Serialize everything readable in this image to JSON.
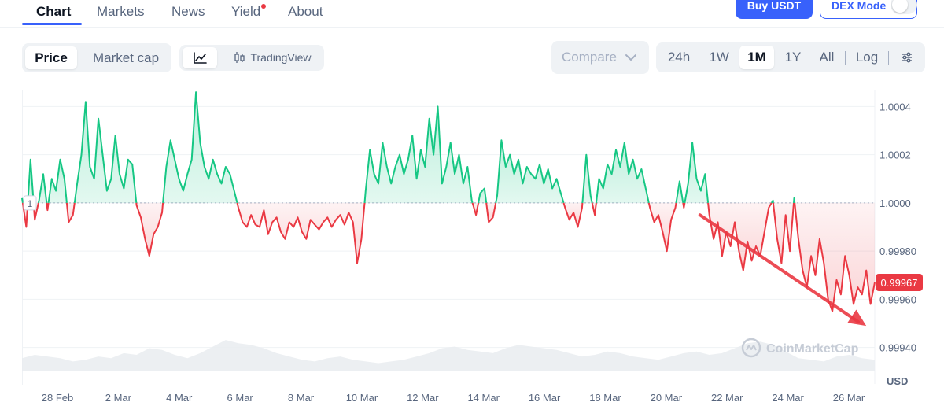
{
  "nav": {
    "tabs": [
      {
        "label": "Chart",
        "active": true
      },
      {
        "label": "Markets"
      },
      {
        "label": "News"
      },
      {
        "label": "Yield",
        "has_dot": true
      },
      {
        "label": "About"
      }
    ],
    "buy_label": "Buy USDT",
    "dex_label": "DEX Mode",
    "dex_enabled": false
  },
  "toolbar": {
    "metric": [
      "Price",
      "Market cap"
    ],
    "metric_selected": "Price",
    "view_line_icon": "line-chart-icon",
    "tradingview_label": "TradingView",
    "compare_label": "Compare",
    "ranges": [
      "24h",
      "1W",
      "1M",
      "1Y",
      "All"
    ],
    "range_selected": "1M",
    "log_label": "Log",
    "settings_icon": "sliders-icon"
  },
  "chart_data": {
    "type": "line",
    "baseline": 1.0,
    "baseline_label": "1",
    "current_price": 0.99967,
    "current_price_label": "0.99967",
    "y_ticks": [
      1.0004,
      1.0002,
      1.0,
      0.9998,
      0.9996,
      0.9994
    ],
    "y_tick_labels": [
      "1.0004",
      "1.0002",
      "1.0000",
      "0.99980",
      "0.99960",
      "0.99940"
    ],
    "ylim": [
      0.99934,
      1.00047
    ],
    "currency_label": "USD",
    "x_tick_labels": [
      "28 Feb",
      "2 Mar",
      "4 Mar",
      "6 Mar",
      "8 Mar",
      "10 Mar",
      "12 Mar",
      "14 Mar",
      "16 Mar",
      "18 Mar",
      "20 Mar",
      "22 Mar",
      "24 Mar",
      "26 Mar"
    ],
    "colors": {
      "up": "#16c784",
      "down": "#ea3943",
      "grid": "#eff2f5"
    },
    "series": [
      {
        "values": [
          1.00002,
          0.9999,
          1.00018,
          0.99993,
          1.00001,
          1.00012,
          0.99997,
          1.0001,
          1.00005,
          1.00018,
          1.0001,
          0.99992,
          0.99995,
          1.00008,
          1.0002,
          1.00042,
          1.00015,
          1.0001,
          1.00035,
          1.0002,
          1.00005,
          1.0001,
          1.00028,
          1.00012,
          1.00006,
          1.00018,
          1.00016,
          0.99999,
          0.99994,
          0.99985,
          0.99978,
          0.99987,
          0.9999,
          0.99996,
          1.00015,
          1.00026,
          1.00018,
          1.0001,
          1.00005,
          1.00012,
          1.00018,
          1.00046,
          1.00025,
          1.00015,
          1.0001,
          1.00018,
          1.00012,
          1.00008,
          1.00015,
          1.00012,
          1.00005,
          0.99998,
          0.99992,
          0.9999,
          0.99995,
          0.99991,
          0.9999,
          0.99997,
          0.99987,
          0.99992,
          0.99994,
          0.99988,
          0.99985,
          0.99992,
          0.9999,
          0.99994,
          0.99988,
          0.99985,
          0.99993,
          0.99991,
          0.99989,
          0.99992,
          0.99994,
          0.9999,
          0.99993,
          0.99995,
          0.99991,
          0.99996,
          0.99992,
          0.99975,
          0.99985,
          1.00005,
          1.00022,
          1.00012,
          1.00008,
          1.00025,
          1.00015,
          1.00008,
          1.00015,
          1.0002,
          1.00012,
          1.00018,
          1.00028,
          1.0001,
          1.00022,
          1.00015,
          1.00035,
          1.0002,
          1.0004,
          1.00008,
          1.00015,
          1.00025,
          1.00012,
          1.0002,
          1.00008,
          1.00015,
          1.00001,
          0.99995,
          1.00004,
          1.00006,
          0.99992,
          0.99994,
          1.00003,
          1.00026,
          1.00015,
          1.0002,
          1.00012,
          1.00018,
          1.00008,
          1.00015,
          1.00012,
          1.0001,
          1.00016,
          1.00008,
          1.00014,
          1.00006,
          1.0001,
          1.00004,
          0.99998,
          0.99993,
          0.99996,
          0.9999,
          0.99998,
          1.0002,
          1.00003,
          0.99995,
          1.0001,
          1.00006,
          1.00016,
          1.00012,
          1.00022,
          1.00015,
          1.00025,
          1.00012,
          1.00018,
          1.0001,
          1.00014,
          1.00006,
          0.99998,
          0.99992,
          0.99995,
          0.99988,
          0.9998,
          0.99993,
          0.99998,
          1.00009,
          0.99998,
          1.00008,
          1.00025,
          1.0001,
          1.00005,
          1.00012,
          0.99995,
          0.99985,
          0.99992,
          0.99978,
          0.99988,
          0.99982,
          0.99992,
          0.9998,
          0.99972,
          0.99984,
          0.99976,
          0.99982,
          0.99978,
          0.99988,
          0.99998,
          1.00001,
          0.99985,
          0.99975,
          0.99995,
          0.9998,
          1.00002,
          0.99985,
          0.99972,
          0.99965,
          0.99978,
          0.9997,
          0.99985,
          0.99975,
          0.9996,
          0.99955,
          0.99968,
          0.99962,
          0.99978,
          0.9997,
          0.99958,
          0.99965,
          0.99962,
          0.99972,
          0.99958,
          0.99967
        ]
      }
    ]
  },
  "volume_data": [
    0.4,
    0.5,
    0.45,
    0.4,
    0.3,
    0.35,
    0.45,
    0.4,
    0.55,
    0.5,
    0.7,
    0.65,
    0.5,
    0.4,
    0.55,
    0.75,
    0.95,
    0.85,
    0.8,
    0.7,
    0.55,
    0.45,
    0.35,
    0.3,
    0.4,
    0.45,
    0.35,
    0.3,
    0.25,
    0.3,
    0.35,
    0.45,
    0.55,
    0.7,
    0.75,
    0.65,
    0.6,
    0.55,
    0.7,
    0.8,
    0.75,
    0.7,
    0.65,
    0.55,
    0.45,
    0.5,
    0.6,
    0.55,
    0.45,
    0.4,
    0.35,
    0.45,
    0.55,
    0.6,
    0.5,
    0.55,
    0.7,
    0.85,
    0.9,
    0.8,
    0.6,
    0.4,
    0.35,
    0.3,
    0.45,
    0.5,
    0.4,
    0.35
  ],
  "annotation": {
    "color": "#ea3943",
    "from": [
      0.795,
      0.99995
    ],
    "to": [
      0.99,
      0.99949
    ]
  },
  "watermark": "CoinMarketCap"
}
